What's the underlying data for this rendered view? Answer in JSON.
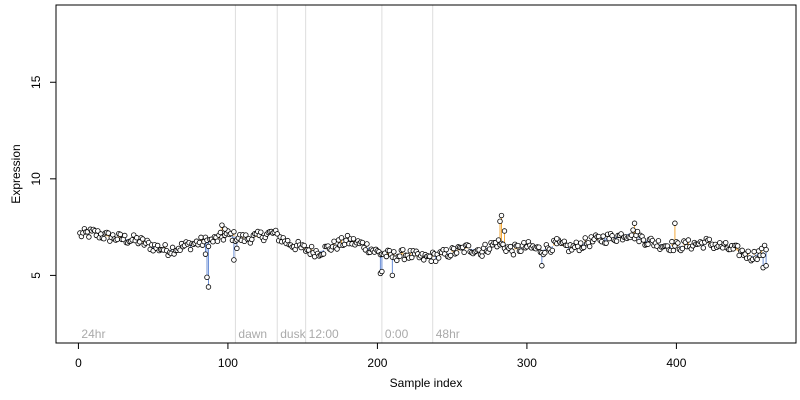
{
  "chart_data": {
    "type": "scatter",
    "title": "",
    "xlabel": "Sample index",
    "ylabel": "Expression",
    "xlim": [
      -15,
      480
    ],
    "ylim": [
      1.5,
      19
    ],
    "x_ticks": [
      0,
      100,
      200,
      300,
      400
    ],
    "y_ticks": [
      5,
      10,
      15
    ],
    "grid": false,
    "phase_markers": [
      {
        "label": "24hr",
        "x": 0
      },
      {
        "label": "dawn",
        "x": 105
      },
      {
        "label": "dusk",
        "x": 133
      },
      {
        "label": "12:00",
        "x": 152
      },
      {
        "label": "0:00",
        "x": 203
      },
      {
        "label": "48hr",
        "x": 237
      }
    ],
    "profile_points": [
      [
        0,
        7.1
      ],
      [
        10,
        7.2
      ],
      [
        20,
        7.0
      ],
      [
        30,
        6.9
      ],
      [
        40,
        6.8
      ],
      [
        50,
        6.5
      ],
      [
        60,
        6.3
      ],
      [
        70,
        6.5
      ],
      [
        80,
        6.7
      ],
      [
        90,
        6.8
      ],
      [
        100,
        7.1
      ],
      [
        110,
        6.9
      ],
      [
        120,
        7.0
      ],
      [
        130,
        7.2
      ],
      [
        140,
        6.7
      ],
      [
        150,
        6.4
      ],
      [
        160,
        6.2
      ],
      [
        170,
        6.5
      ],
      [
        180,
        6.8
      ],
      [
        190,
        6.6
      ],
      [
        200,
        6.2
      ],
      [
        210,
        6.0
      ],
      [
        220,
        6.1
      ],
      [
        230,
        5.9
      ],
      [
        240,
        6.0
      ],
      [
        250,
        6.2
      ],
      [
        260,
        6.4
      ],
      [
        270,
        6.3
      ],
      [
        280,
        6.7
      ],
      [
        290,
        6.3
      ],
      [
        300,
        6.5
      ],
      [
        310,
        6.3
      ],
      [
        320,
        6.6
      ],
      [
        330,
        6.4
      ],
      [
        340,
        6.7
      ],
      [
        350,
        6.9
      ],
      [
        360,
        7.0
      ],
      [
        370,
        7.2
      ],
      [
        380,
        6.8
      ],
      [
        390,
        6.6
      ],
      [
        400,
        6.5
      ],
      [
        410,
        6.6
      ],
      [
        420,
        6.7
      ],
      [
        430,
        6.5
      ],
      [
        440,
        6.3
      ],
      [
        450,
        6.0
      ],
      [
        458,
        6.2
      ],
      [
        462,
        6.6
      ]
    ],
    "n_samples": 460,
    "outliers": [
      {
        "x": 86,
        "y": 4.9
      },
      {
        "x": 87,
        "y": 4.4
      },
      {
        "x": 85,
        "y": 6.1
      },
      {
        "x": 202,
        "y": 5.1
      },
      {
        "x": 203,
        "y": 5.2
      },
      {
        "x": 210,
        "y": 5.0
      },
      {
        "x": 283,
        "y": 8.1
      },
      {
        "x": 282,
        "y": 7.8
      },
      {
        "x": 285,
        "y": 7.3
      },
      {
        "x": 372,
        "y": 7.7
      },
      {
        "x": 399,
        "y": 7.7
      },
      {
        "x": 96,
        "y": 7.6
      },
      {
        "x": 98,
        "y": 7.4
      },
      {
        "x": 104,
        "y": 5.8
      },
      {
        "x": 106,
        "y": 6.4
      },
      {
        "x": 458,
        "y": 5.4
      },
      {
        "x": 460,
        "y": 5.5
      },
      {
        "x": 310,
        "y": 5.5
      },
      {
        "x": 270,
        "y": 6.0
      },
      {
        "x": 320,
        "y": 6.9
      }
    ],
    "colors": {
      "marker_fill": "#ffffff",
      "marker_stroke": "#000000",
      "stem_up": "#f2a93b",
      "stem_down": "#6b8fd6",
      "phase_line": "#dddddd",
      "phase_label": "#aaaaaa",
      "axis": "#000000"
    }
  }
}
